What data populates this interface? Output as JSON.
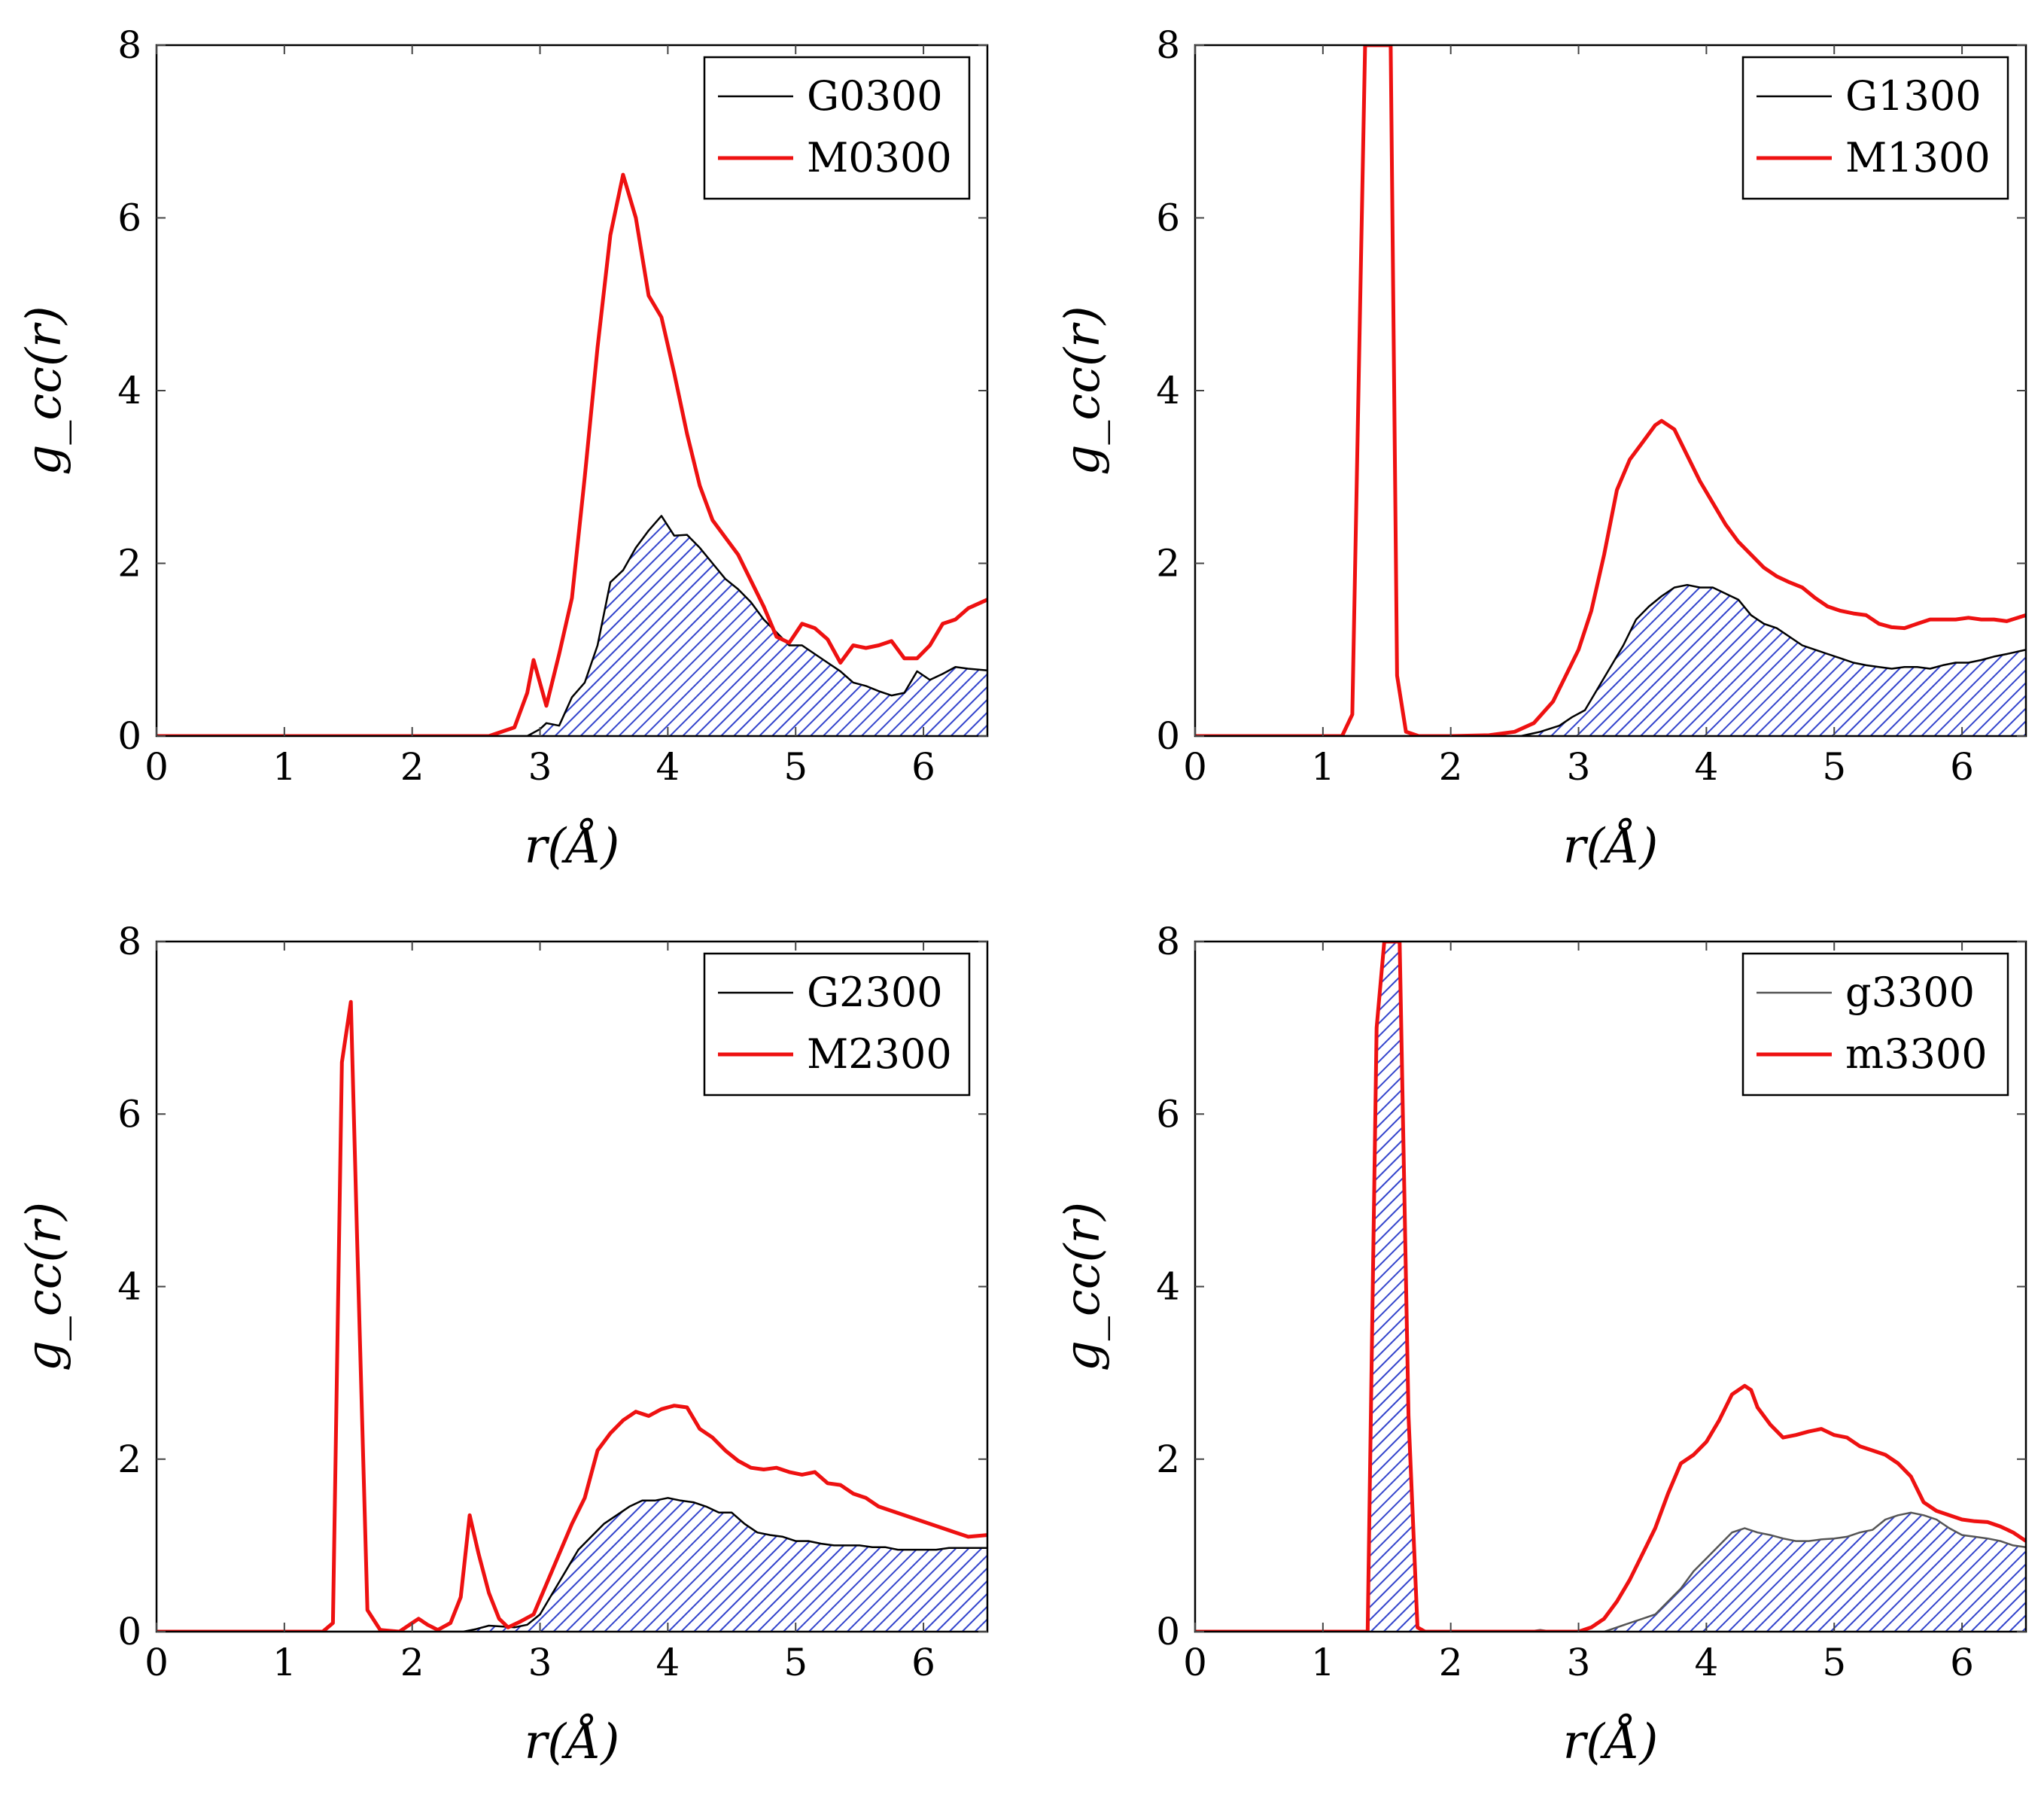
{
  "chart_data": [
    {
      "type": "line",
      "xlabel": "r(Å)",
      "ylabel": "g_cc(r)",
      "xlim": [
        0,
        6.5
      ],
      "ylim": [
        0,
        8
      ],
      "xticks": [
        0,
        1,
        2,
        3,
        4,
        5,
        6
      ],
      "yticks": [
        0,
        2,
        4,
        6,
        8
      ],
      "legend_position": "top-right",
      "series": [
        {
          "name": "G0300",
          "style": "filled-hatched",
          "color": "#000000",
          "fill_color": "#3344cc",
          "x": [
            0,
            2.7,
            2.9,
            3.0,
            3.05,
            3.15,
            3.25,
            3.35,
            3.45,
            3.55,
            3.65,
            3.75,
            3.85,
            3.95,
            4.05,
            4.15,
            4.25,
            4.35,
            4.45,
            4.55,
            4.65,
            4.75,
            4.85,
            4.95,
            5.05,
            5.15,
            5.25,
            5.35,
            5.45,
            5.55,
            5.65,
            5.75,
            5.85,
            5.95,
            6.05,
            6.15,
            6.25,
            6.35,
            6.5
          ],
          "y": [
            0,
            0,
            0,
            0.08,
            0.15,
            0.12,
            0.45,
            0.62,
            1.05,
            1.78,
            1.92,
            2.18,
            2.38,
            2.55,
            2.32,
            2.33,
            2.18,
            2.0,
            1.82,
            1.7,
            1.55,
            1.35,
            1.2,
            1.05,
            1.05,
            0.95,
            0.85,
            0.75,
            0.62,
            0.58,
            0.52,
            0.47,
            0.5,
            0.75,
            0.65,
            0.72,
            0.8,
            0.78,
            0.76
          ]
        },
        {
          "name": "M0300",
          "style": "line",
          "color": "#ee1111",
          "x": [
            0,
            2.6,
            2.7,
            2.8,
            2.9,
            2.95,
            3.05,
            3.15,
            3.25,
            3.35,
            3.45,
            3.55,
            3.65,
            3.75,
            3.85,
            3.95,
            4.05,
            4.15,
            4.25,
            4.35,
            4.45,
            4.55,
            4.65,
            4.75,
            4.85,
            4.95,
            5.05,
            5.15,
            5.25,
            5.35,
            5.45,
            5.55,
            5.65,
            5.75,
            5.85,
            5.95,
            6.05,
            6.15,
            6.25,
            6.35,
            6.5
          ],
          "y": [
            0,
            0,
            0.05,
            0.1,
            0.5,
            0.88,
            0.35,
            0.95,
            1.6,
            3.0,
            4.5,
            5.8,
            6.5,
            6.0,
            5.1,
            4.85,
            4.2,
            3.5,
            2.9,
            2.5,
            2.3,
            2.1,
            1.8,
            1.5,
            1.15,
            1.08,
            1.3,
            1.25,
            1.12,
            0.85,
            1.05,
            1.02,
            1.05,
            1.1,
            0.9,
            0.9,
            1.05,
            1.3,
            1.35,
            1.48,
            1.58
          ]
        }
      ]
    },
    {
      "type": "line",
      "xlabel": "r(Å)",
      "ylabel": "g_cc(r)",
      "xlim": [
        0,
        6.5
      ],
      "ylim": [
        0,
        8
      ],
      "xticks": [
        0,
        1,
        2,
        3,
        4,
        5,
        6
      ],
      "yticks": [
        0,
        2,
        4,
        6,
        8
      ],
      "legend_position": "top-right",
      "series": [
        {
          "name": "G1300",
          "style": "filled-hatched",
          "color": "#000000",
          "fill_color": "#3344cc",
          "x": [
            0,
            2.55,
            2.7,
            2.85,
            2.95,
            3.05,
            3.15,
            3.25,
            3.35,
            3.45,
            3.55,
            3.65,
            3.75,
            3.85,
            3.95,
            4.05,
            4.15,
            4.25,
            4.35,
            4.45,
            4.55,
            4.65,
            4.75,
            4.85,
            4.95,
            5.05,
            5.15,
            5.25,
            5.35,
            5.45,
            5.55,
            5.65,
            5.75,
            5.85,
            5.95,
            6.05,
            6.15,
            6.25,
            6.35,
            6.5
          ],
          "y": [
            0,
            0,
            0.05,
            0.12,
            0.22,
            0.3,
            0.55,
            0.8,
            1.05,
            1.35,
            1.5,
            1.62,
            1.72,
            1.75,
            1.72,
            1.72,
            1.65,
            1.58,
            1.4,
            1.3,
            1.25,
            1.15,
            1.05,
            1.0,
            0.95,
            0.9,
            0.85,
            0.82,
            0.8,
            0.78,
            0.8,
            0.8,
            0.78,
            0.82,
            0.85,
            0.85,
            0.88,
            0.92,
            0.95,
            1.0
          ]
        },
        {
          "name": "M1300",
          "style": "line",
          "color": "#ee1111",
          "x": [
            0,
            1.15,
            1.23,
            1.33,
            1.38,
            1.48,
            1.53,
            1.58,
            1.65,
            1.75,
            2.0,
            2.3,
            2.5,
            2.65,
            2.8,
            2.9,
            3.0,
            3.1,
            3.2,
            3.3,
            3.4,
            3.5,
            3.6,
            3.65,
            3.75,
            3.85,
            3.95,
            4.05,
            4.15,
            4.25,
            4.35,
            4.45,
            4.55,
            4.65,
            4.75,
            4.85,
            4.95,
            5.05,
            5.15,
            5.25,
            5.35,
            5.45,
            5.55,
            5.65,
            5.75,
            5.85,
            5.95,
            6.05,
            6.15,
            6.25,
            6.35,
            6.5
          ],
          "y": [
            0,
            0,
            0.25,
            8.0,
            8.0,
            8.0,
            8.0,
            0.7,
            0.05,
            0.0,
            0.0,
            0.01,
            0.05,
            0.15,
            0.4,
            0.7,
            1.0,
            1.45,
            2.1,
            2.85,
            3.2,
            3.4,
            3.6,
            3.65,
            3.55,
            3.25,
            2.95,
            2.7,
            2.45,
            2.25,
            2.1,
            1.95,
            1.85,
            1.78,
            1.72,
            1.6,
            1.5,
            1.45,
            1.42,
            1.4,
            1.3,
            1.26,
            1.25,
            1.3,
            1.35,
            1.35,
            1.35,
            1.37,
            1.35,
            1.35,
            1.33,
            1.4
          ]
        }
      ]
    },
    {
      "type": "line",
      "xlabel": "r(Å)",
      "ylabel": "g_cc(r)",
      "xlim": [
        0,
        6.5
      ],
      "ylim": [
        0,
        8
      ],
      "xticks": [
        0,
        1,
        2,
        3,
        4,
        5,
        6
      ],
      "yticks": [
        0,
        2,
        4,
        6,
        8
      ],
      "legend_position": "top-right",
      "series": [
        {
          "name": "G2300",
          "style": "filled-hatched",
          "color": "#000000",
          "fill_color": "#3344cc",
          "x": [
            0,
            2.4,
            2.5,
            2.6,
            2.7,
            2.8,
            2.9,
            3.0,
            3.1,
            3.2,
            3.3,
            3.4,
            3.5,
            3.6,
            3.7,
            3.8,
            3.9,
            4.0,
            4.1,
            4.2,
            4.3,
            4.4,
            4.5,
            4.6,
            4.7,
            4.8,
            4.9,
            5.0,
            5.1,
            5.2,
            5.3,
            5.4,
            5.5,
            5.6,
            5.7,
            5.8,
            5.9,
            6.0,
            6.1,
            6.2,
            6.3,
            6.5
          ],
          "y": [
            0,
            0,
            0.03,
            0.07,
            0.06,
            0.05,
            0.08,
            0.2,
            0.45,
            0.7,
            0.95,
            1.1,
            1.25,
            1.35,
            1.45,
            1.52,
            1.52,
            1.55,
            1.52,
            1.5,
            1.45,
            1.38,
            1.38,
            1.25,
            1.15,
            1.12,
            1.1,
            1.05,
            1.05,
            1.02,
            1.0,
            1.0,
            1.0,
            0.98,
            0.98,
            0.95,
            0.95,
            0.95,
            0.95,
            0.97,
            0.97,
            0.97
          ]
        },
        {
          "name": "M2300",
          "style": "line",
          "color": "#ee1111",
          "x": [
            0,
            1.3,
            1.38,
            1.45,
            1.52,
            1.57,
            1.65,
            1.75,
            1.9,
            2.0,
            2.05,
            2.12,
            2.2,
            2.3,
            2.38,
            2.45,
            2.52,
            2.6,
            2.68,
            2.75,
            2.85,
            2.95,
            3.05,
            3.15,
            3.25,
            3.35,
            3.45,
            3.55,
            3.65,
            3.75,
            3.85,
            3.95,
            4.05,
            4.15,
            4.25,
            4.35,
            4.45,
            4.55,
            4.65,
            4.75,
            4.85,
            4.95,
            5.05,
            5.15,
            5.25,
            5.35,
            5.45,
            5.55,
            5.65,
            5.75,
            5.85,
            5.95,
            6.05,
            6.15,
            6.25,
            6.35,
            6.5
          ],
          "y": [
            0,
            0,
            0.1,
            6.6,
            7.3,
            4.5,
            0.25,
            0.02,
            0.0,
            0.1,
            0.15,
            0.08,
            0.02,
            0.1,
            0.4,
            1.35,
            0.9,
            0.45,
            0.15,
            0.05,
            0.12,
            0.2,
            0.55,
            0.9,
            1.25,
            1.55,
            2.1,
            2.3,
            2.45,
            2.55,
            2.5,
            2.58,
            2.62,
            2.6,
            2.35,
            2.25,
            2.1,
            1.98,
            1.9,
            1.88,
            1.9,
            1.85,
            1.82,
            1.85,
            1.72,
            1.7,
            1.6,
            1.55,
            1.45,
            1.4,
            1.35,
            1.3,
            1.25,
            1.2,
            1.15,
            1.1,
            1.12
          ]
        }
      ]
    },
    {
      "type": "line",
      "xlabel": "r(Å)",
      "ylabel": "g_cc(r)",
      "xlim": [
        0,
        6.5
      ],
      "ylim": [
        0,
        8
      ],
      "xticks": [
        0,
        1,
        2,
        3,
        4,
        5,
        6
      ],
      "yticks": [
        0,
        2,
        4,
        6,
        8
      ],
      "legend_position": "top-right",
      "series": [
        {
          "name": "g3300",
          "style": "filled-hatched",
          "color": "#555555",
          "fill_color": "#3344cc",
          "x": [
            0,
            1.35,
            1.42,
            1.48,
            1.6,
            1.67,
            1.74,
            1.8,
            2.6,
            2.7,
            2.8,
            3.2,
            3.3,
            3.4,
            3.5,
            3.6,
            3.7,
            3.8,
            3.9,
            4.0,
            4.1,
            4.2,
            4.3,
            4.4,
            4.5,
            4.6,
            4.7,
            4.8,
            4.9,
            5.0,
            5.1,
            5.2,
            5.3,
            5.4,
            5.5,
            5.6,
            5.7,
            5.8,
            5.9,
            6.0,
            6.1,
            6.2,
            6.3,
            6.4,
            6.5
          ],
          "y": [
            0,
            0,
            7.0,
            8.0,
            8.0,
            2.5,
            0.05,
            0.0,
            0.0,
            0.02,
            0.0,
            0.0,
            0.05,
            0.1,
            0.15,
            0.2,
            0.35,
            0.5,
            0.7,
            0.85,
            1.0,
            1.15,
            1.2,
            1.15,
            1.12,
            1.08,
            1.05,
            1.05,
            1.07,
            1.08,
            1.1,
            1.15,
            1.18,
            1.3,
            1.35,
            1.38,
            1.35,
            1.3,
            1.2,
            1.12,
            1.1,
            1.08,
            1.05,
            1.0,
            0.98
          ]
        },
        {
          "name": "m3300",
          "style": "line",
          "color": "#ee1111",
          "x": [
            0,
            1.35,
            1.42,
            1.48,
            1.6,
            1.67,
            1.74,
            1.8,
            2.5,
            2.8,
            3.0,
            3.1,
            3.2,
            3.3,
            3.4,
            3.5,
            3.6,
            3.7,
            3.8,
            3.9,
            4.0,
            4.1,
            4.2,
            4.3,
            4.35,
            4.4,
            4.5,
            4.6,
            4.7,
            4.8,
            4.9,
            5.0,
            5.1,
            5.2,
            5.3,
            5.4,
            5.5,
            5.6,
            5.7,
            5.8,
            5.9,
            6.0,
            6.1,
            6.2,
            6.3,
            6.4,
            6.5
          ],
          "y": [
            0,
            0,
            7.0,
            8.0,
            8.0,
            2.5,
            0.05,
            0.0,
            0.0,
            0.0,
            0.0,
            0.05,
            0.15,
            0.35,
            0.6,
            0.9,
            1.2,
            1.6,
            1.95,
            2.05,
            2.2,
            2.45,
            2.75,
            2.85,
            2.8,
            2.6,
            2.4,
            2.25,
            2.28,
            2.32,
            2.35,
            2.28,
            2.25,
            2.15,
            2.1,
            2.05,
            1.95,
            1.8,
            1.5,
            1.4,
            1.35,
            1.3,
            1.28,
            1.27,
            1.22,
            1.15,
            1.05
          ]
        }
      ]
    }
  ]
}
